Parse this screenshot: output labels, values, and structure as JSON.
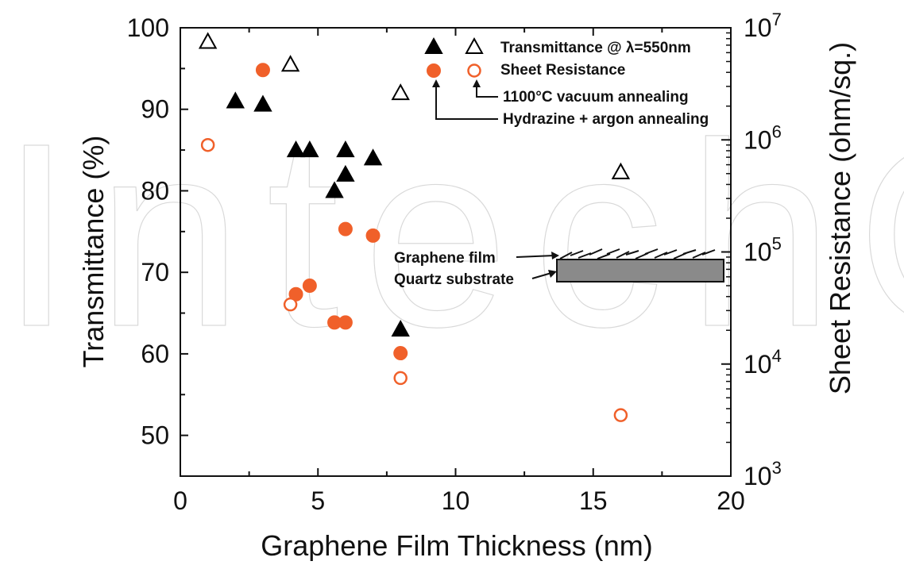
{
  "watermark": "IntechOpen",
  "chart_data": {
    "type": "scatter",
    "title": "",
    "xlabel": "Graphene Film Thickness (nm)",
    "ylabel": "Transmittance (%)",
    "y2label": "Sheet Resistance (ohm/sq.)",
    "xlim": [
      0,
      20
    ],
    "ylim": [
      45,
      100
    ],
    "y2lim": [
      1000,
      10000000
    ],
    "y2scale": "log",
    "x_ticks": [
      "0",
      "5",
      "10",
      "15",
      "20"
    ],
    "y_ticks": [
      "50",
      "60",
      "70",
      "80",
      "90",
      "100"
    ],
    "y2_ticks": [
      {
        "base": "10",
        "exp": "3"
      },
      {
        "base": "10",
        "exp": "4"
      },
      {
        "base": "10",
        "exp": "5"
      },
      {
        "base": "10",
        "exp": "6"
      },
      {
        "base": "10",
        "exp": "7"
      }
    ],
    "grid": false,
    "legend_position": "top-right",
    "series": [
      {
        "name": "Transmittance @ λ=550nm",
        "method": "Hydrazine + argon annealing",
        "axis": "left",
        "marker": "filled-triangle",
        "color": "#000000",
        "points": [
          [
            2,
            91
          ],
          [
            3,
            90.6
          ],
          [
            4.2,
            85
          ],
          [
            4.7,
            85
          ],
          [
            5.6,
            80
          ],
          [
            6,
            85
          ],
          [
            6,
            82
          ],
          [
            7,
            84
          ],
          [
            8,
            63
          ]
        ]
      },
      {
        "name": "Transmittance @ λ=550nm",
        "method": "1100°C vacuum annealing",
        "axis": "left",
        "marker": "open-triangle",
        "color": "#000000",
        "points": [
          [
            1,
            98.3
          ],
          [
            4,
            95.5
          ],
          [
            8,
            92
          ],
          [
            16,
            82.3
          ]
        ]
      },
      {
        "name": "Sheet Resistance",
        "method": "Hydrazine + argon annealing",
        "axis": "right",
        "marker": "filled-circle",
        "color": "#f0602a",
        "points": [
          [
            3,
            4200000
          ],
          [
            4.2,
            42000
          ],
          [
            4.7,
            50000
          ],
          [
            5.6,
            23500
          ],
          [
            6,
            23500
          ],
          [
            6,
            160000
          ],
          [
            7,
            140000
          ],
          [
            8,
            12500
          ]
        ]
      },
      {
        "name": "Sheet Resistance",
        "method": "1100°C vacuum annealing",
        "axis": "right",
        "marker": "open-circle",
        "color": "#f0602a",
        "points": [
          [
            1,
            900000
          ],
          [
            4,
            34000
          ],
          [
            8,
            7500
          ],
          [
            16,
            3500
          ]
        ]
      }
    ],
    "legend": {
      "transmittance_label": "Transmittance @ λ=550nm",
      "resistance_label": "Sheet Resistance",
      "vacuum_label": "1100°C vacuum annealing",
      "hydrazine_label": "Hydrazine + argon annealing"
    },
    "inset": {
      "film_label": "Graphene film",
      "substrate_label": "Quartz substrate"
    }
  }
}
